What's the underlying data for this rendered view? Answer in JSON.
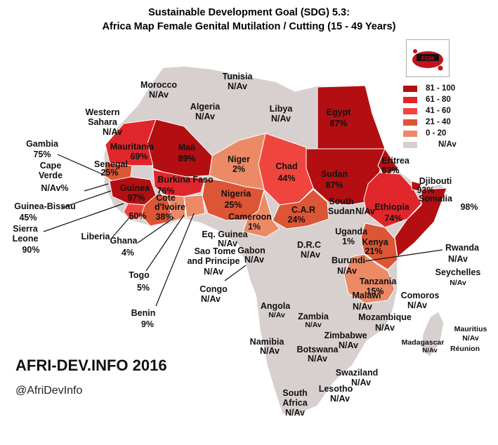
{
  "title_line1": "Sustainable Development Goal (SDG) 5.3:",
  "title_line2": "Africa Map Female Genital Mutilation / Cutting  (15 - 49 Years)",
  "brand": "AFRI-DEV.INFO 2016",
  "handle": "@AfriDevInfo",
  "logo_text": "FGM",
  "legend": [
    {
      "label": "81 - 100",
      "color": "#b30f12"
    },
    {
      "label": "61 - 80",
      "color": "#e0262b"
    },
    {
      "label": "41 - 60",
      "color": "#f0453f"
    },
    {
      "label": "21 - 40",
      "color": "#dc5534"
    },
    {
      "label": "0 -  20",
      "color": "#ec8a66"
    },
    {
      "label": "N/Av",
      "color": "#d8cfcf"
    }
  ],
  "countries": {
    "morocco": {
      "name": "Morocco",
      "value": "N/Av"
    },
    "tunisia": {
      "name": "Tunisia",
      "value": "N/Av"
    },
    "algeria": {
      "name": "Algeria",
      "value": "N/Av"
    },
    "libya": {
      "name": "Libya",
      "value": "N/Av"
    },
    "egypt": {
      "name": "Egypt",
      "value": "87%"
    },
    "western_sahara": {
      "name1": "Western",
      "name2": "Sahara",
      "value": "N/Av"
    },
    "mauritania": {
      "name": "Mauritania",
      "value": "69%"
    },
    "mali": {
      "name": "Mali",
      "value": "89%"
    },
    "niger": {
      "name": "Niger",
      "value": "2%"
    },
    "chad": {
      "name": "Chad",
      "value": "44%"
    },
    "sudan": {
      "name": "Sudan",
      "value": "87%"
    },
    "eritrea": {
      "name": "Eritrea",
      "value": "83%"
    },
    "djibouti": {
      "name": "Djibouti",
      "value": "93%"
    },
    "somalia": {
      "name": "Somalia",
      "value": "98%"
    },
    "ethiopia": {
      "name": "Ethiopia",
      "value": "74%"
    },
    "gambia": {
      "name": "Gambia",
      "value": "75%"
    },
    "cape_verde": {
      "name1": "Cape",
      "name2": "Verde",
      "value": "N/Av%"
    },
    "senegal": {
      "name": "Senegal",
      "value": "25%"
    },
    "guinea_bissau": {
      "name": "Guinea-Bissau",
      "value": "45%"
    },
    "guinea": {
      "name": "Guinea",
      "value": "97%"
    },
    "burkina_faso": {
      "name": "Burkina Faso",
      "value": "76%"
    },
    "nigeria": {
      "name": "Nigeria",
      "value": "25%"
    },
    "sierra_leone": {
      "name1": "Sierra",
      "name2": "Leone",
      "value": "90%"
    },
    "liberia": {
      "name": "Liberia",
      "value": "50%"
    },
    "cote_divoire": {
      "name1": "Cote",
      "name2": "d'Ivoire",
      "value": "38%"
    },
    "ghana": {
      "name": "Ghana",
      "value": "4%"
    },
    "togo": {
      "name": "Togo",
      "value": "5%"
    },
    "benin": {
      "name": "Benin",
      "value": "9%"
    },
    "cameroon": {
      "name": "Cameroon",
      "value": "1%"
    },
    "car": {
      "name": "C.A.R",
      "value": "24%"
    },
    "south_sudan": {
      "name1": "South",
      "name2": "Sudan",
      "value": "N/Av"
    },
    "uganda": {
      "name": "Uganda",
      "value": "1%"
    },
    "kenya": {
      "name": "Kenya",
      "value": "21%"
    },
    "eq_guinea": {
      "name": "Eq. Guinea",
      "value": "N/Av"
    },
    "sao_tome": {
      "name1": "Sao Tome",
      "name2": "and Principe",
      "value": "N/Av"
    },
    "gabon": {
      "name": "Gabon",
      "value": "N/Av"
    },
    "drc": {
      "name": "D.R.C",
      "value": "N/Av"
    },
    "rwanda": {
      "name": "Rwanda",
      "value": "N/Av"
    },
    "burundi": {
      "name": "Burundi",
      "value": "N/Av"
    },
    "congo": {
      "name": "Congo",
      "value": "N/Av"
    },
    "tanzania": {
      "name": "Tanzania",
      "value": "15%"
    },
    "seychelles": {
      "name": "Seychelles",
      "value": "N/Av"
    },
    "malawi": {
      "name": "Malawi",
      "value": "N/Av"
    },
    "comoros": {
      "name": "Comoros",
      "value": "N/Av"
    },
    "angola": {
      "name": "Angola",
      "value": "N/Av"
    },
    "zambia": {
      "name": "Zambia",
      "value": "N/Av"
    },
    "mozambique": {
      "name": "Mozambique",
      "value": "N/Av"
    },
    "zimbabwe": {
      "name": "Zimbabwe",
      "value": "N/Av"
    },
    "mauritius": {
      "name": "Mauritius",
      "value": "N/Av"
    },
    "madagascar": {
      "name": "Madagascar",
      "value": "N/Av"
    },
    "reunion": {
      "name": "Réunion"
    },
    "namibia": {
      "name": "Namibia",
      "value": "N/Av"
    },
    "botswana": {
      "name": "Botswana",
      "value": "N/Av"
    },
    "swaziland": {
      "name": "Swaziland",
      "value": "N/Av"
    },
    "lesotho": {
      "name": "Lesotho",
      "value": "N/Av"
    },
    "south_africa": {
      "name1": "South",
      "name2": "Africa",
      "value": "N/Av"
    }
  }
}
